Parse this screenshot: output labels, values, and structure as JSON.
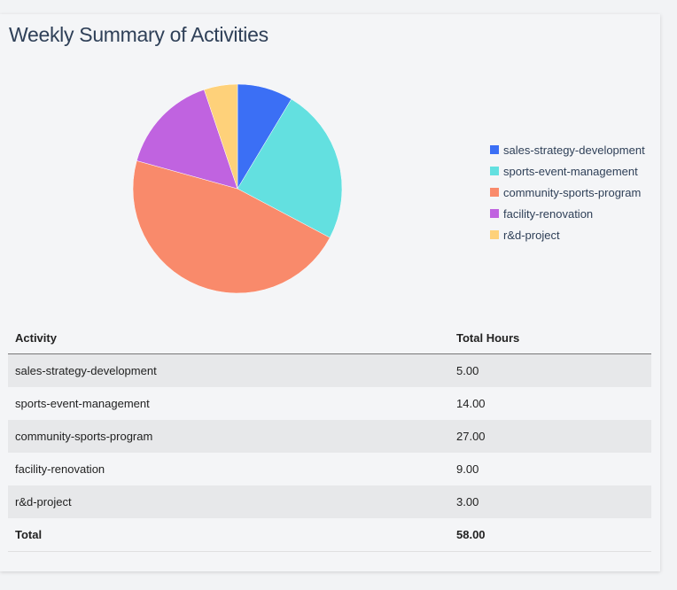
{
  "title": "Weekly Summary of Activities",
  "chart_data": {
    "type": "pie",
    "categories": [
      "sales-strategy-development",
      "sports-event-management",
      "community-sports-program",
      "facility-renovation",
      "r&d-project"
    ],
    "values": [
      5,
      14,
      27,
      9,
      3
    ],
    "colors": [
      "#3b6ff5",
      "#63e0e0",
      "#f98a6b",
      "#c063e0",
      "#fed17a"
    ],
    "legend_position": "right"
  },
  "table": {
    "headers": [
      "Activity",
      "Total Hours"
    ],
    "rows": [
      [
        "sales-strategy-development",
        "5.00"
      ],
      [
        "sports-event-management",
        "14.00"
      ],
      [
        "community-sports-program",
        "27.00"
      ],
      [
        "facility-renovation",
        "9.00"
      ],
      [
        "r&d-project",
        "3.00"
      ]
    ],
    "total": [
      "Total",
      "58.00"
    ]
  }
}
